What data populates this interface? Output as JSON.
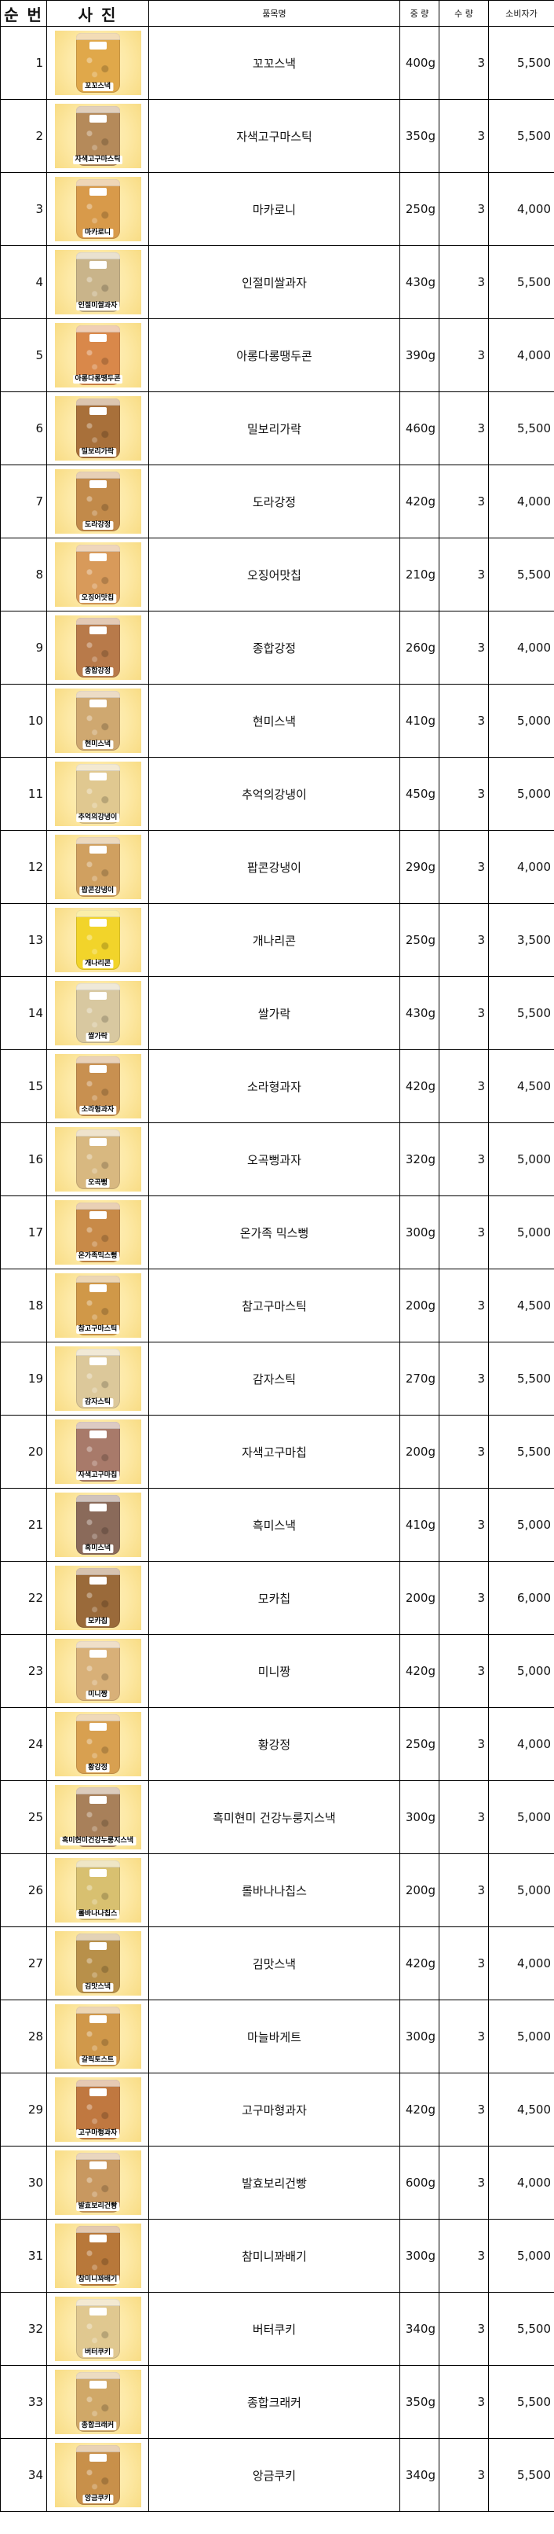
{
  "header": {
    "no": "순 번",
    "photo": "사 진",
    "name": "품목명",
    "weight": "중 량",
    "qty": "수 량",
    "price": "소비자가"
  },
  "items": [
    {
      "no": "1",
      "name": "꼬꼬스낵",
      "label": "꼬꼬스낵",
      "weight": "400g",
      "qty": "3",
      "price": "5,500",
      "color": "#e0a84a"
    },
    {
      "no": "2",
      "name": "자색고구마스틱",
      "label": "자색고구마스틱",
      "weight": "350g",
      "qty": "3",
      "price": "5,500",
      "color": "#b58a5a"
    },
    {
      "no": "3",
      "name": "마카로니",
      "label": "마카로니",
      "weight": "250g",
      "qty": "3",
      "price": "4,000",
      "color": "#d89a4a"
    },
    {
      "no": "4",
      "name": "인절미쌀과자",
      "label": "인절미쌀과자",
      "weight": "430g",
      "qty": "3",
      "price": "5,500",
      "color": "#c9b48a"
    },
    {
      "no": "5",
      "name": "아롱다롱땡두콘",
      "label": "아롱다롱땡두콘",
      "weight": "390g",
      "qty": "3",
      "price": "4,000",
      "color": "#d9884a"
    },
    {
      "no": "6",
      "name": "밀보리가락",
      "label": "밀보리가락",
      "weight": "460g",
      "qty": "3",
      "price": "5,500",
      "color": "#a8703a"
    },
    {
      "no": "7",
      "name": "도라강정",
      "label": "도라강정",
      "weight": "420g",
      "qty": "3",
      "price": "4,000",
      "color": "#c28a4a"
    },
    {
      "no": "8",
      "name": "오징어맛칩",
      "label": "오징어맛칩",
      "weight": "210g",
      "qty": "3",
      "price": "5,500",
      "color": "#d89a5a"
    },
    {
      "no": "9",
      "name": "종합강정",
      "label": "종합강정",
      "weight": "260g",
      "qty": "3",
      "price": "4,000",
      "color": "#b87a4a"
    },
    {
      "no": "10",
      "name": "현미스낵",
      "label": "현미스낵",
      "weight": "410g",
      "qty": "3",
      "price": "5,000",
      "color": "#cfa870"
    },
    {
      "no": "11",
      "name": "추억의강냉이",
      "label": "추억의강냉이",
      "weight": "450g",
      "qty": "3",
      "price": "5,000",
      "color": "#e0c890"
    },
    {
      "no": "12",
      "name": "팝콘강냉이",
      "label": "팝콘강냉이",
      "weight": "290g",
      "qty": "3",
      "price": "4,000",
      "color": "#d0a060"
    },
    {
      "no": "13",
      "name": "개나리콘",
      "label": "개나리콘",
      "weight": "250g",
      "qty": "3",
      "price": "3,500",
      "color": "#f2d42a"
    },
    {
      "no": "14",
      "name": "쌀가락",
      "label": "쌀가락",
      "weight": "430g",
      "qty": "3",
      "price": "5,500",
      "color": "#d8c8a0"
    },
    {
      "no": "15",
      "name": "소라형과자",
      "label": "소라형과자",
      "weight": "420g",
      "qty": "3",
      "price": "4,500",
      "color": "#c89050"
    },
    {
      "no": "16",
      "name": "오곡뻥과자",
      "label": "오곡뻥",
      "weight": "320g",
      "qty": "3",
      "price": "5,000",
      "color": "#d8b880"
    },
    {
      "no": "17",
      "name": "온가족 믹스뻥",
      "label": "온가족믹스뻥",
      "weight": "300g",
      "qty": "3",
      "price": "5,000",
      "color": "#c88a48"
    },
    {
      "no": "18",
      "name": "참고구마스틱",
      "label": "참고구마스틱",
      "weight": "200g",
      "qty": "3",
      "price": "4,500",
      "color": "#d09848"
    },
    {
      "no": "19",
      "name": "감자스틱",
      "label": "감자스틱",
      "weight": "270g",
      "qty": "3",
      "price": "5,500",
      "color": "#dcc89a"
    },
    {
      "no": "20",
      "name": "자색고구마칩",
      "label": "자색고구마칩",
      "weight": "200g",
      "qty": "3",
      "price": "5,500",
      "color": "#a87a6a"
    },
    {
      "no": "21",
      "name": "흑미스낵",
      "label": "흑미스낵",
      "weight": "410g",
      "qty": "3",
      "price": "5,000",
      "color": "#8a6a5a"
    },
    {
      "no": "22",
      "name": "모카칩",
      "label": "모카칩",
      "weight": "200g",
      "qty": "3",
      "price": "6,000",
      "color": "#9a6a3a"
    },
    {
      "no": "23",
      "name": "미니짱",
      "label": "미니짱",
      "weight": "420g",
      "qty": "3",
      "price": "5,000",
      "color": "#d8b078"
    },
    {
      "no": "24",
      "name": "황강정",
      "label": "황강정",
      "weight": "250g",
      "qty": "3",
      "price": "4,000",
      "color": "#d8a050"
    },
    {
      "no": "25",
      "name": "흑미현미 건강누룽지스낵",
      "label": "흑미현미건강누룽지스낵",
      "weight": "300g",
      "qty": "3",
      "price": "5,000",
      "color": "#a8805a"
    },
    {
      "no": "26",
      "name": "롤바나나칩스",
      "label": "롤바나나칩스",
      "weight": "200g",
      "qty": "3",
      "price": "5,000",
      "color": "#d8c070"
    },
    {
      "no": "27",
      "name": "김맛스낵",
      "label": "김맛스낵",
      "weight": "420g",
      "qty": "3",
      "price": "4,000",
      "color": "#b8904a"
    },
    {
      "no": "28",
      "name": "마늘바게트",
      "label": "갈릭토스트",
      "weight": "300g",
      "qty": "3",
      "price": "5,000",
      "color": "#d0984a"
    },
    {
      "no": "29",
      "name": "고구마형과자",
      "label": "고구마형과자",
      "weight": "420g",
      "qty": "3",
      "price": "4,500",
      "color": "#c07840"
    },
    {
      "no": "30",
      "name": "발효보리건빵",
      "label": "발효보리건빵",
      "weight": "600g",
      "qty": "3",
      "price": "4,000",
      "color": "#c89860"
    },
    {
      "no": "31",
      "name": "참미니꽈배기",
      "label": "참미니꽈배기",
      "weight": "300g",
      "qty": "3",
      "price": "5,000",
      "color": "#b8783a"
    },
    {
      "no": "32",
      "name": "버터쿠키",
      "label": "버터쿠키",
      "weight": "340g",
      "qty": "3",
      "price": "5,500",
      "color": "#e0c890"
    },
    {
      "no": "33",
      "name": "종합크래커",
      "label": "종합크래커",
      "weight": "350g",
      "qty": "3",
      "price": "5,500",
      "color": "#d0a868"
    },
    {
      "no": "34",
      "name": "앙금쿠키",
      "label": "앙금쿠키",
      "weight": "340g",
      "qty": "3",
      "price": "5,500",
      "color": "#c8904a"
    }
  ]
}
